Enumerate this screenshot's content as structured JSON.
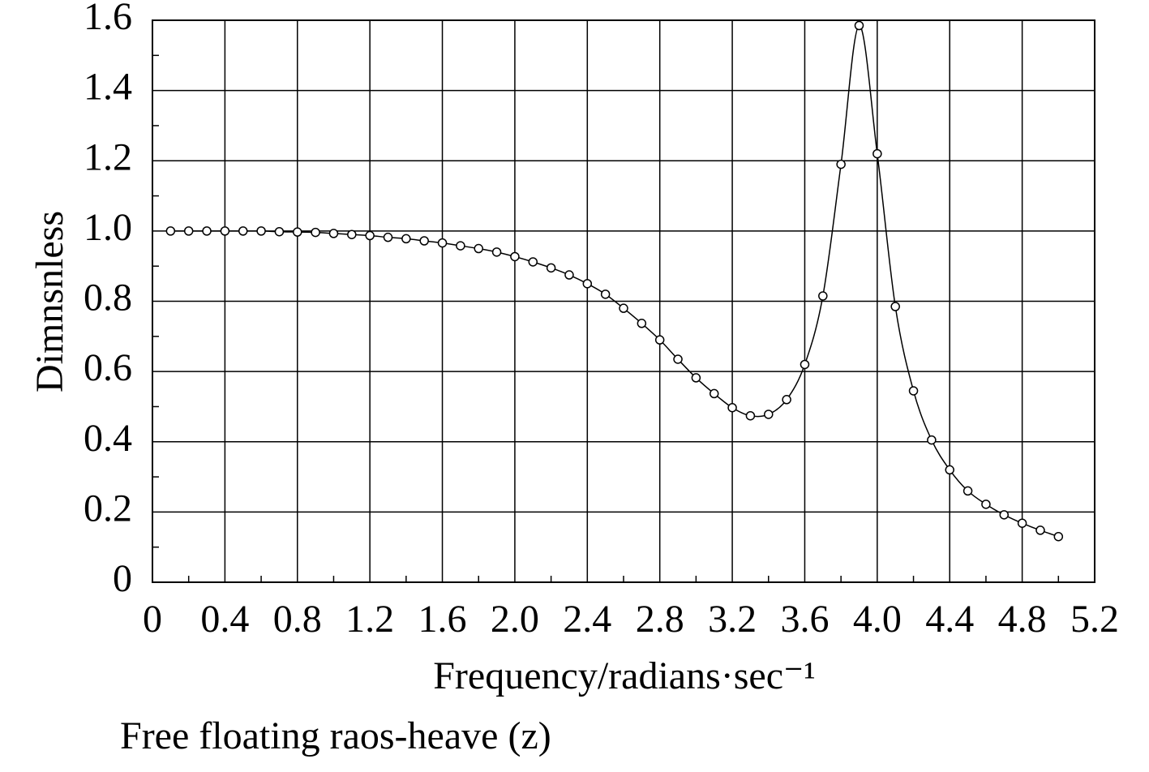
{
  "chart_data": {
    "type": "line",
    "x_label": "Frequency/radians·sec⁻¹",
    "y_label": "Dimnsnless",
    "caption": "Free floating raos-heave (z)",
    "x": [
      0.1,
      0.2,
      0.3,
      0.4,
      0.5,
      0.6,
      0.7,
      0.8,
      0.9,
      1.0,
      1.1,
      1.2,
      1.3,
      1.4,
      1.5,
      1.6,
      1.7,
      1.8,
      1.9,
      2.0,
      2.1,
      2.2,
      2.3,
      2.4,
      2.5,
      2.6,
      2.7,
      2.8,
      2.9,
      3.0,
      3.1,
      3.2,
      3.3,
      3.4,
      3.5,
      3.6,
      3.7,
      3.8,
      3.9,
      4.0,
      4.1,
      4.2,
      4.3,
      4.4,
      4.5,
      4.6,
      4.7,
      4.8,
      4.9,
      5.0
    ],
    "values": [
      1.0,
      1.0,
      1.0,
      1.0,
      1.0,
      1.0,
      0.998,
      0.997,
      0.996,
      0.993,
      0.99,
      0.987,
      0.982,
      0.978,
      0.972,
      0.966,
      0.958,
      0.95,
      0.94,
      0.927,
      0.912,
      0.895,
      0.875,
      0.85,
      0.82,
      0.78,
      0.737,
      0.69,
      0.635,
      0.582,
      0.537,
      0.497,
      0.474,
      0.478,
      0.52,
      0.62,
      0.815,
      1.19,
      1.585,
      1.22,
      0.785,
      0.545,
      0.405,
      0.32,
      0.26,
      0.222,
      0.192,
      0.168,
      0.148,
      0.13
    ],
    "color": "#000000",
    "marker": "circle",
    "xlim": [
      0,
      5.2
    ],
    "ylim": [
      0,
      1.6
    ],
    "xticks": [
      0,
      0.4,
      0.8,
      1.2,
      1.6,
      {
        "value": 2,
        "label": "2.0"
      },
      2.4,
      2.8,
      3.2,
      3.6,
      {
        "value": 4,
        "label": "4.0"
      },
      4.4,
      4.8,
      5.2
    ],
    "yticks": [
      0,
      0.2,
      0.4,
      0.6,
      0.8,
      {
        "value": 1,
        "label": "1.0"
      },
      1.2,
      1.4,
      1.6
    ],
    "grid": true
  }
}
